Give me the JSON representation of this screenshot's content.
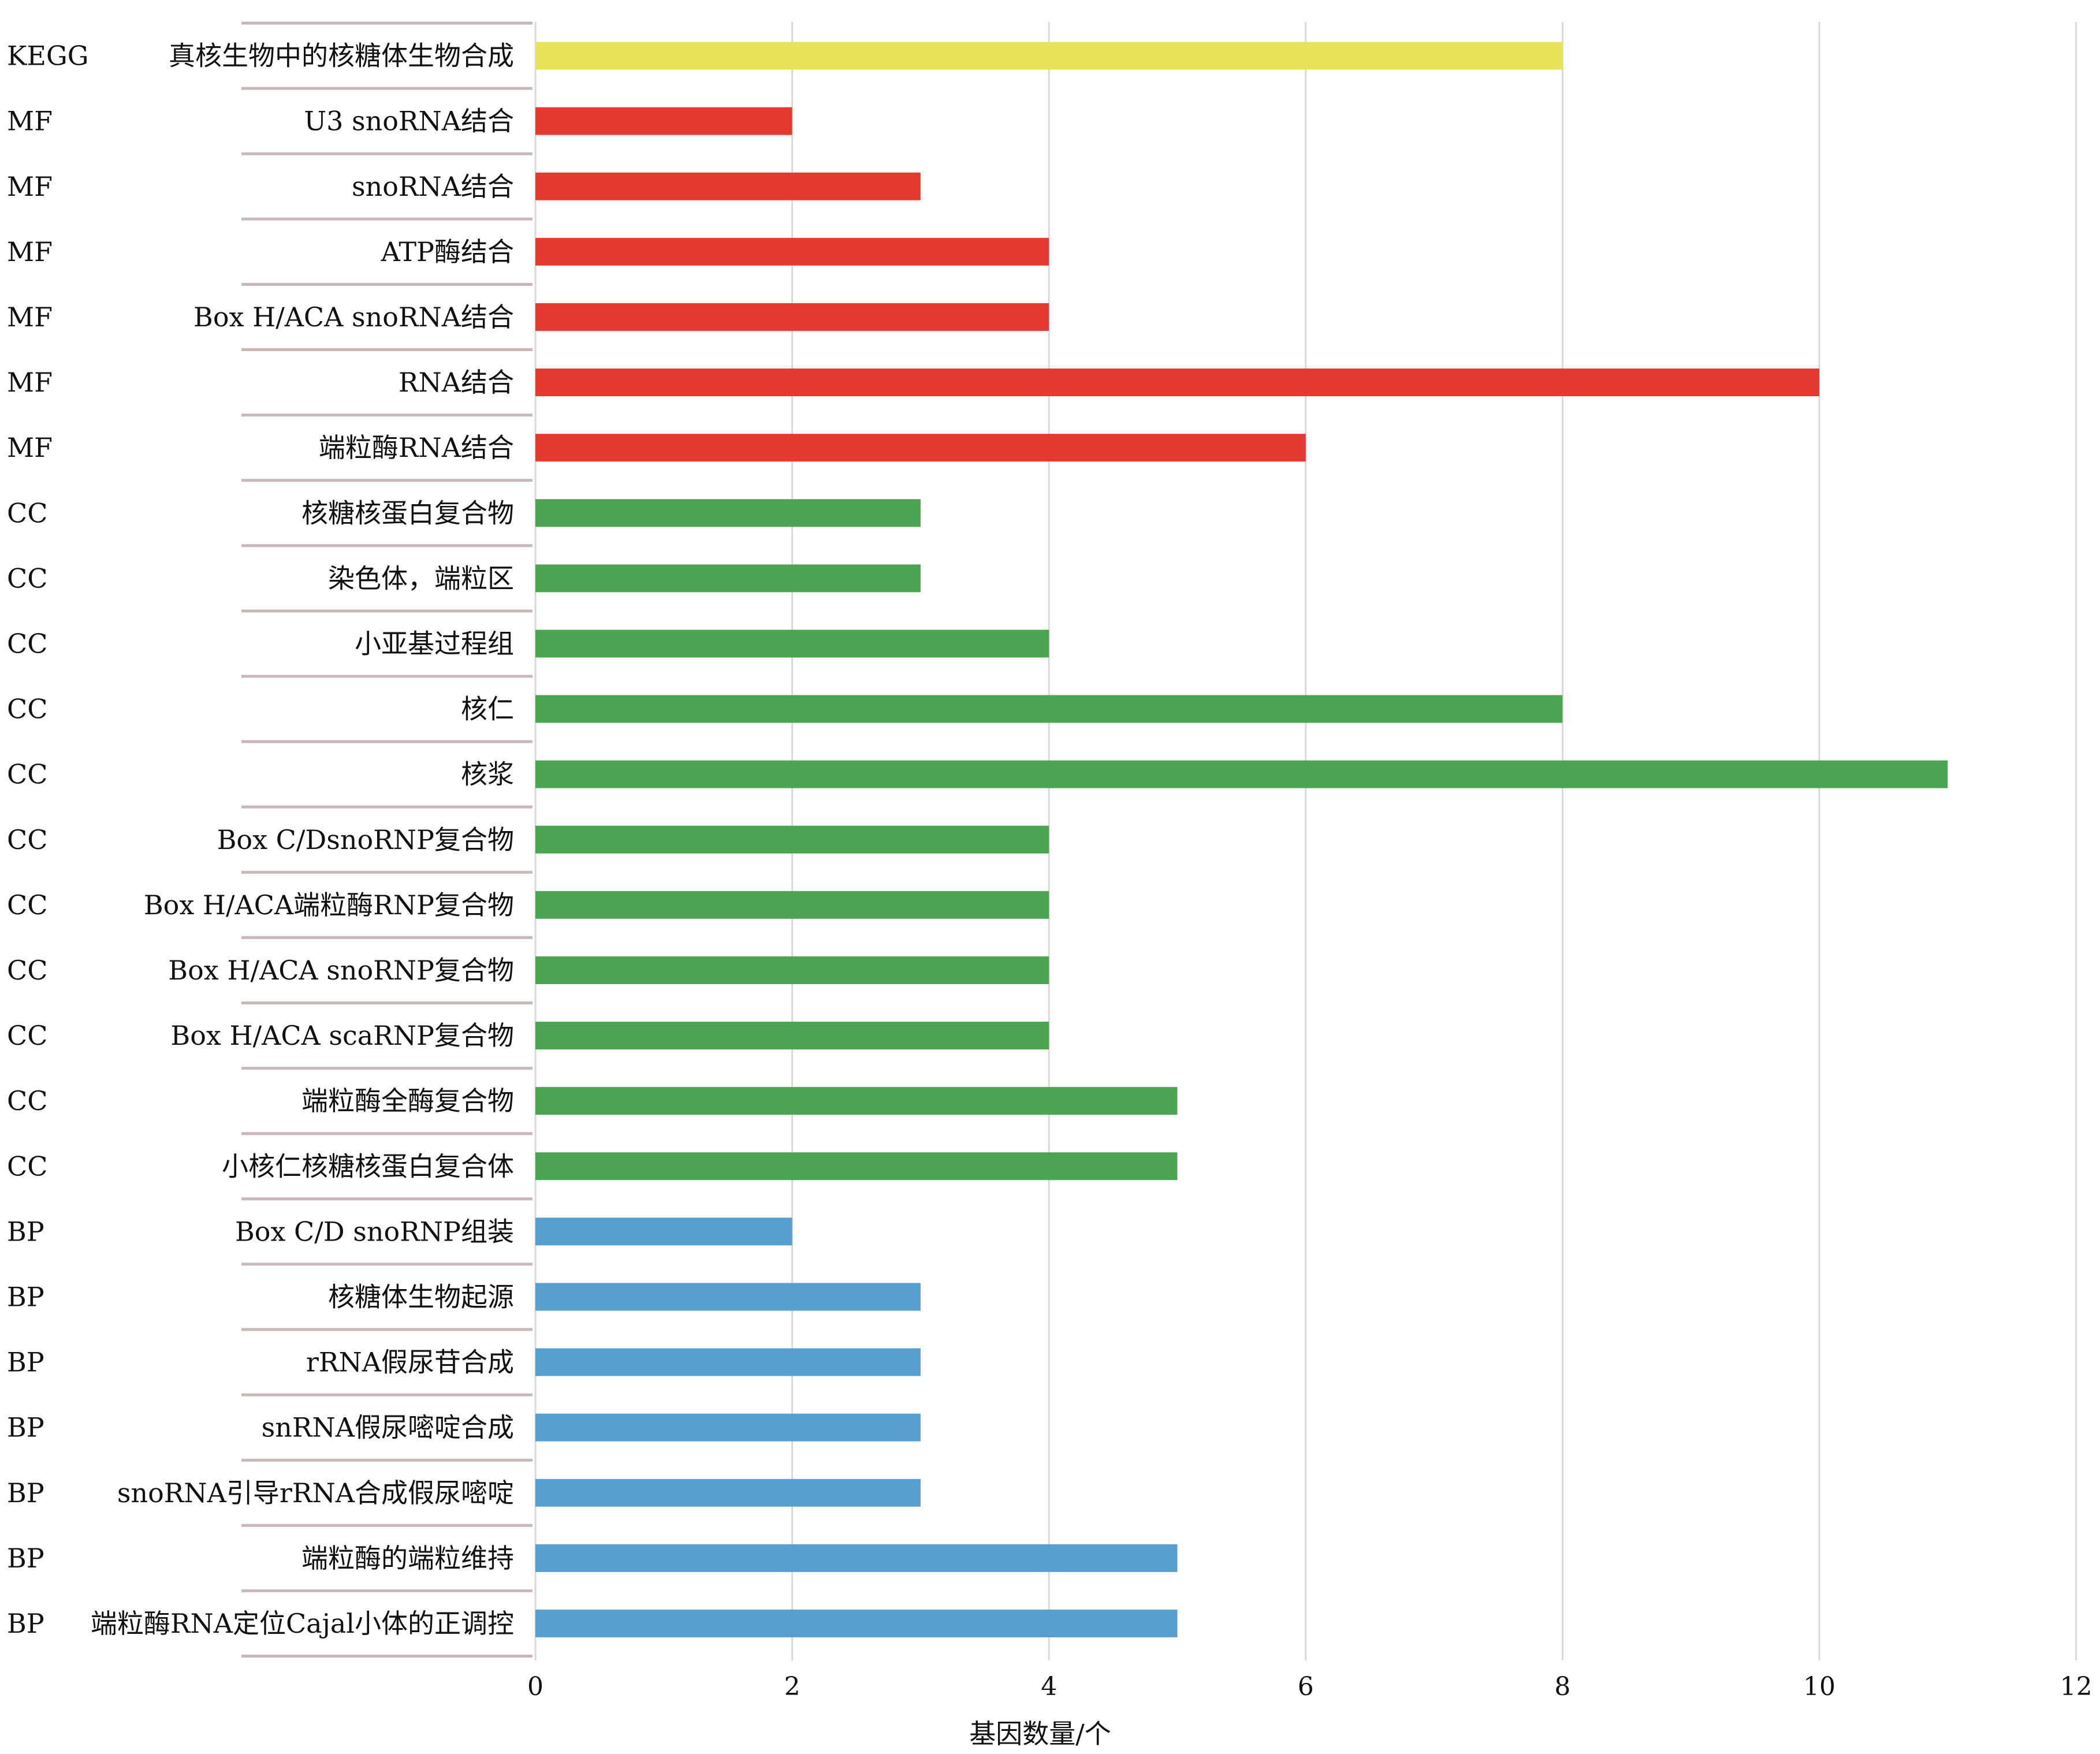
{
  "chart_data": {
    "type": "bar",
    "orientation": "horizontal",
    "xlabel": "基因数量/个",
    "xlim": [
      0,
      12
    ],
    "xticks": [
      0,
      2,
      4,
      6,
      8,
      10,
      12
    ],
    "grid": "vertical",
    "legend": "none",
    "colors": {
      "KEGG": "#E8E35A",
      "MF": "#E53A32",
      "CC": "#4AA452",
      "BP": "#569FCF",
      "grid": "#d9d9d9",
      "divider": "#c9b8b8"
    },
    "rows": [
      {
        "group": "KEGG",
        "label": "真核生物中的核糖体生物合成",
        "value": 8
      },
      {
        "group": "MF",
        "label": "U3 snoRNA结合",
        "value": 2
      },
      {
        "group": "MF",
        "label": "snoRNA结合",
        "value": 3
      },
      {
        "group": "MF",
        "label": "ATP酶结合",
        "value": 4
      },
      {
        "group": "MF",
        "label": "Box H/ACA snoRNA结合",
        "value": 4
      },
      {
        "group": "MF",
        "label": "RNA结合",
        "value": 10
      },
      {
        "group": "MF",
        "label": "端粒酶RNA结合",
        "value": 6
      },
      {
        "group": "CC",
        "label": "核糖核蛋白复合物",
        "value": 3
      },
      {
        "group": "CC",
        "label": "染色体，端粒区",
        "value": 3
      },
      {
        "group": "CC",
        "label": "小亚基过程组",
        "value": 4
      },
      {
        "group": "CC",
        "label": "核仁",
        "value": 8
      },
      {
        "group": "CC",
        "label": "核浆",
        "value": 11
      },
      {
        "group": "CC",
        "label": "Box C/DsnoRNP复合物",
        "value": 4
      },
      {
        "group": "CC",
        "label": "Box H/ACA端粒酶RNP复合物",
        "value": 4
      },
      {
        "group": "CC",
        "label": "Box H/ACA snoRNP复合物",
        "value": 4
      },
      {
        "group": "CC",
        "label": "Box H/ACA scaRNP复合物",
        "value": 4
      },
      {
        "group": "CC",
        "label": "端粒酶全酶复合物",
        "value": 5
      },
      {
        "group": "CC",
        "label": "小核仁核糖核蛋白复合体",
        "value": 5
      },
      {
        "group": "BP",
        "label": "Box C/D snoRNP组装",
        "value": 2
      },
      {
        "group": "BP",
        "label": "核糖体生物起源",
        "value": 3
      },
      {
        "group": "BP",
        "label": "rRNA假尿苷合成",
        "value": 3
      },
      {
        "group": "BP",
        "label": "snRNA假尿嘧啶合成",
        "value": 3
      },
      {
        "group": "BP",
        "label": "snoRNA引导rRNA合成假尿嘧啶",
        "value": 3
      },
      {
        "group": "BP",
        "label": "端粒酶的端粒维持",
        "value": 5
      },
      {
        "group": "BP",
        "label": "端粒酶RNA定位Cajal小体的正调控",
        "value": 5
      }
    ]
  }
}
